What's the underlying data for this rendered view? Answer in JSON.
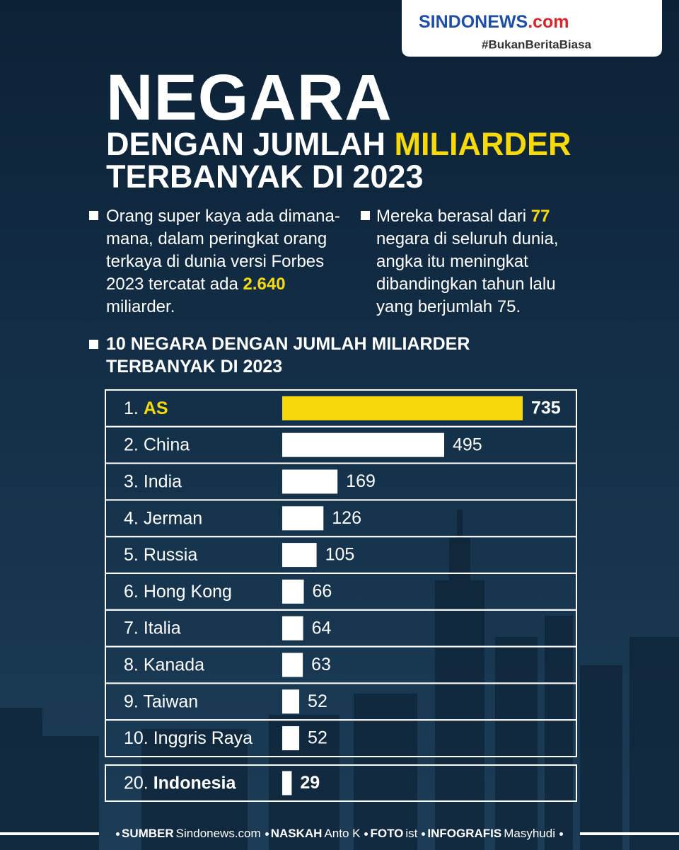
{
  "header": {
    "logo": "SINDONEWS",
    "logo_suffix": ".com",
    "tagline": "#BukanBeritaBiasa"
  },
  "title": {
    "line1": "NEGARA",
    "line2": "DENGAN JUMLAH ",
    "highlight": "MILIARDER",
    "line3": "TERBANYAK DI 2023"
  },
  "intro": [
    {
      "before": "Orang super kaya ada dimana-mana, dalam peringkat orang terkaya di dunia versi Forbes 2023 tercatat ada ",
      "number": "2.640",
      "after": " miliarder."
    },
    {
      "before": "Mereka berasal dari ",
      "number": "77",
      "after": " negara di seluruh dunia, angka itu meningkat dibandingkan tahun lalu yang berjumlah 75."
    }
  ],
  "chart_data": {
    "type": "bar",
    "title": "10 NEGARA DENGAN JUMLAH MILIARDER TERBANYAK DI 2023",
    "ranks": [
      "1.",
      "2.",
      "3.",
      "4.",
      "5.",
      "6.",
      "7.",
      "8.",
      "9.",
      "10.",
      "20."
    ],
    "categories": [
      "AS",
      "China",
      "India",
      "Jerman",
      "Russia",
      "Hong Kong",
      "Italia",
      "Kanada",
      "Taiwan",
      "Inggris Raya",
      "Indonesia"
    ],
    "values": [
      735,
      495,
      169,
      126,
      105,
      66,
      64,
      63,
      52,
      52,
      29
    ],
    "colors": [
      "#f5d90a",
      "#ffffff",
      "#ffffff",
      "#ffffff",
      "#ffffff",
      "#ffffff",
      "#ffffff",
      "#ffffff",
      "#ffffff",
      "#ffffff",
      "#ffffff"
    ]
  },
  "footer": [
    {
      "label": "SUMBER",
      "value": "Sindonews.com"
    },
    {
      "label": "NASKAH",
      "value": "Anto K"
    },
    {
      "label": "FOTO",
      "value": "ist"
    },
    {
      "label": "INFOGRAFIS",
      "value": "Masyhudi"
    }
  ]
}
